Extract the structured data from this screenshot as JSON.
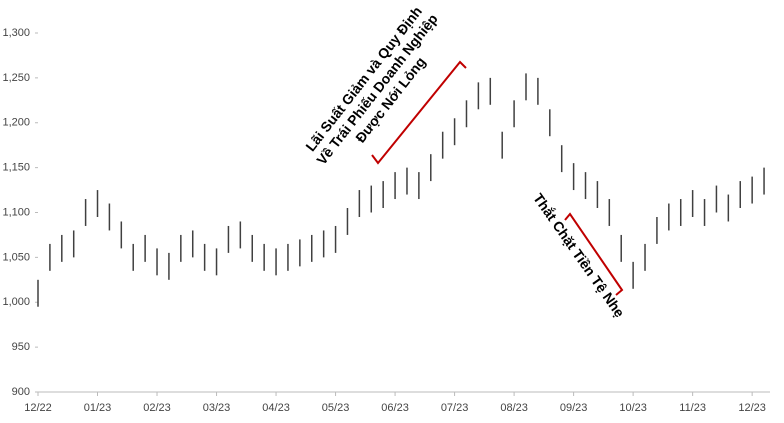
{
  "chart_data": {
    "type": "range",
    "color": "#404040",
    "annotation_color": "#c00000",
    "x": [
      0,
      0.2,
      0.4,
      0.6,
      0.8,
      1,
      1.2,
      1.4,
      1.6,
      1.8,
      2,
      2.2,
      2.4,
      2.6,
      2.8,
      3,
      3.2,
      3.4,
      3.6,
      3.8,
      4,
      4.2,
      4.4,
      4.6,
      4.8,
      5,
      5.2,
      5.4,
      5.6,
      5.8,
      6,
      6.2,
      6.4,
      6.6,
      6.8,
      7,
      7.2,
      7.4,
      7.6,
      7.8,
      8,
      8.2,
      8.4,
      8.6,
      8.8,
      9,
      9.2,
      9.4,
      9.6,
      9.8,
      10,
      10.2,
      10.4,
      10.6,
      10.8,
      11,
      11.2,
      11.4,
      11.6,
      11.8,
      12,
      12.2
    ],
    "high": [
      1025,
      1065,
      1075,
      1080,
      1115,
      1125,
      1110,
      1090,
      1065,
      1075,
      1060,
      1055,
      1075,
      1080,
      1065,
      1060,
      1085,
      1090,
      1075,
      1065,
      1060,
      1065,
      1070,
      1075,
      1080,
      1085,
      1105,
      1125,
      1130,
      1135,
      1145,
      1150,
      1145,
      1165,
      1190,
      1205,
      1225,
      1245,
      1250,
      1190,
      1225,
      1255,
      1250,
      1215,
      1175,
      1155,
      1145,
      1135,
      1115,
      1075,
      1045,
      1065,
      1095,
      1110,
      1115,
      1125,
      1115,
      1130,
      1120,
      1135,
      1140,
      1150
    ],
    "low": [
      995,
      1035,
      1045,
      1050,
      1085,
      1095,
      1080,
      1060,
      1035,
      1045,
      1030,
      1025,
      1045,
      1050,
      1035,
      1030,
      1055,
      1060,
      1045,
      1035,
      1030,
      1035,
      1040,
      1045,
      1050,
      1055,
      1075,
      1095,
      1100,
      1105,
      1115,
      1120,
      1115,
      1135,
      1160,
      1175,
      1195,
      1215,
      1220,
      1160,
      1195,
      1225,
      1220,
      1185,
      1145,
      1125,
      1115,
      1105,
      1085,
      1045,
      1015,
      1035,
      1065,
      1080,
      1085,
      1095,
      1085,
      1100,
      1090,
      1105,
      1110,
      1120
    ],
    "xlim": [
      0,
      12.3
    ],
    "xticks": [
      {
        "value": 0,
        "label": "12/22"
      },
      {
        "value": 1,
        "label": "01/23"
      },
      {
        "value": 2,
        "label": "02/23"
      },
      {
        "value": 3,
        "label": "03/23"
      },
      {
        "value": 4,
        "label": "04/23"
      },
      {
        "value": 5,
        "label": "05/23"
      },
      {
        "value": 6,
        "label": "06/23"
      },
      {
        "value": 7,
        "label": "07/23"
      },
      {
        "value": 8,
        "label": "08/23"
      },
      {
        "value": 9,
        "label": "09/23"
      },
      {
        "value": 10,
        "label": "10/23"
      },
      {
        "value": 11,
        "label": "11/23"
      },
      {
        "value": 12,
        "label": "12/23"
      }
    ],
    "ylim": [
      900,
      1300
    ],
    "yticks": [
      900,
      950,
      {
        "value": 1000,
        "label": "1,000"
      },
      {
        "value": 1050,
        "label": "1,050"
      },
      {
        "value": 1100,
        "label": "1,100"
      },
      {
        "value": 1150,
        "label": "1,150"
      },
      {
        "value": 1200,
        "label": "1,200"
      },
      {
        "value": 1250,
        "label": "1,250"
      },
      {
        "value": 1300,
        "label": "1,300"
      }
    ],
    "annotations": [
      [
        "Lãi Suất Giảm và Quy Định",
        "Về Trái Phiếu Doanh Nghiệp",
        "Được Nới Lỏng"
      ],
      [
        "Thắt Chặt Tiền Tệ Nhẹ"
      ]
    ]
  }
}
